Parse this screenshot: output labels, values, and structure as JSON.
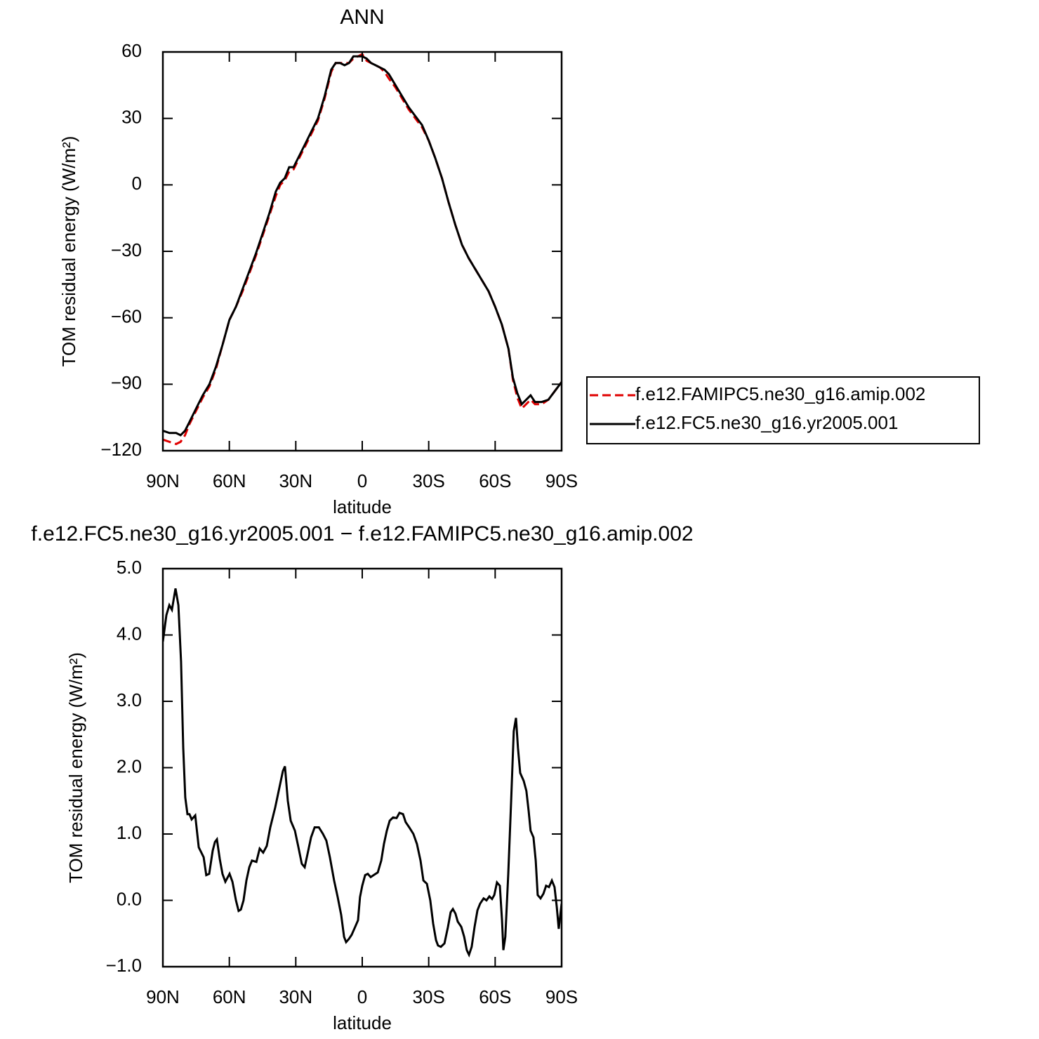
{
  "chart_data": [
    {
      "type": "line",
      "title": "ANN",
      "xlabel": "latitude",
      "ylabel": "TOM residual energy (W/m²)",
      "x": [
        90,
        87,
        84,
        82,
        80,
        78,
        75,
        72,
        69,
        66,
        63,
        60,
        57,
        54,
        51,
        48,
        45,
        42,
        39,
        37,
        35,
        33,
        31,
        29,
        26,
        23,
        20,
        17,
        14,
        12,
        10,
        8,
        6,
        4,
        2,
        0,
        -2,
        -4,
        -6,
        -8,
        -10,
        -12,
        -15,
        -18,
        -21,
        -24,
        -27,
        -30,
        -33,
        -36,
        -39,
        -42,
        -45,
        -48,
        -51,
        -54,
        -57,
        -60,
        -63,
        -66,
        -68,
        -70,
        -72,
        -74,
        -76,
        -78,
        -81,
        -84,
        -87,
        -90
      ],
      "series": [
        {
          "name": "f.e12.FAMIPC5.ne30_g16.amip.002",
          "color": "#e00000",
          "line_style": "dashed",
          "values": [
            -115,
            -116,
            -117,
            -116,
            -113,
            -108,
            -102,
            -96,
            -91,
            -83,
            -72,
            -61,
            -55,
            -48,
            -40,
            -32,
            -23,
            -14,
            -5,
            0,
            2,
            6,
            7,
            11,
            17,
            23,
            29,
            39,
            51,
            55,
            55,
            55,
            55,
            57,
            58,
            59,
            56,
            55,
            54,
            53,
            51,
            48,
            44,
            39,
            34,
            30,
            26,
            20,
            12,
            3,
            -8,
            -18,
            -27,
            -33,
            -38,
            -43,
            -48,
            -55,
            -63,
            -74,
            -88,
            -96,
            -101,
            -99,
            -97,
            -99,
            -99,
            -97,
            -93,
            -89
          ]
        },
        {
          "name": "f.e12.FC5.ne30_g16.yr2005.001",
          "color": "#000000",
          "line_style": "solid",
          "values": [
            -111,
            -112,
            -112,
            -113,
            -111,
            -107,
            -101,
            -95,
            -90,
            -82,
            -72,
            -61,
            -55,
            -47,
            -39,
            -31,
            -22,
            -13,
            -3,
            1,
            3,
            8,
            8,
            12,
            18,
            24,
            30,
            40,
            52,
            55,
            55,
            54,
            55,
            58,
            58,
            58,
            57,
            55,
            54,
            53,
            52,
            50,
            45,
            40,
            35,
            31,
            27,
            20,
            12,
            3,
            -8,
            -18,
            -27,
            -33,
            -38,
            -43,
            -48,
            -55,
            -63,
            -74,
            -87,
            -94,
            -99,
            -97,
            -95,
            -98,
            -98,
            -97,
            -93,
            -89
          ]
        }
      ],
      "xlim": [
        90,
        -90
      ],
      "xticks": [
        {
          "value": 90,
          "label": "90N"
        },
        {
          "value": 60,
          "label": "60N"
        },
        {
          "value": 30,
          "label": "30N"
        },
        0,
        {
          "value": -30,
          "label": "30S"
        },
        {
          "value": -60,
          "label": "60S"
        },
        {
          "value": -90,
          "label": "90S"
        }
      ],
      "ylim": [
        -120,
        60
      ],
      "yticks": [
        {
          "value": -120,
          "label": "−120"
        },
        {
          "value": -90,
          "label": "−90"
        },
        {
          "value": -60,
          "label": "−60"
        },
        {
          "value": -30,
          "label": "−30"
        },
        0,
        30,
        60
      ],
      "legend": "outside-right"
    },
    {
      "type": "line",
      "title": "f.e12.FC5.ne30_g16.yr2005.001 − f.e12.FAMIPC5.ne30_g16.amip.002",
      "xlabel": "latitude",
      "ylabel": "TOM residual energy (W/m²)",
      "x": [
        90,
        88.4,
        87.1,
        85.9,
        84.3,
        83.0,
        81.8,
        80.8,
        79.9,
        78.9,
        78.0,
        77.0,
        75.4,
        73.8,
        71.6,
        70.4,
        69.1,
        67.5,
        66.5,
        65.6,
        64.3,
        63.1,
        61.8,
        59.9,
        58.6,
        57.0,
        55.8,
        54.8,
        53.6,
        52.3,
        51.0,
        49.8,
        47.8,
        46.3,
        44.7,
        43.1,
        41.5,
        39.3,
        37.4,
        35.8,
        34.9,
        33.6,
        32.3,
        30.4,
        28.8,
        27.3,
        26.0,
        24.7,
        23.1,
        21.5,
        19.6,
        17.7,
        16.2,
        14.6,
        12.7,
        11.1,
        9.5,
        8.2,
        7.3,
        6.0,
        4.8,
        3.2,
        1.9,
        1.0,
        0,
        -1.3,
        -2.5,
        -3.8,
        -5.1,
        -7.0,
        -8.6,
        -9.8,
        -11.1,
        -12.4,
        -13.9,
        -15.5,
        -16.8,
        -18.4,
        -19.6,
        -21.2,
        -23.1,
        -24.7,
        -26.3,
        -27.6,
        -29.2,
        -30.7,
        -32.0,
        -33.3,
        -34.2,
        -35.5,
        -37.1,
        -38.7,
        -39.9,
        -40.9,
        -42.1,
        -43.1,
        -44.7,
        -46.0,
        -47.2,
        -48.2,
        -49.4,
        -50.7,
        -52.0,
        -53.2,
        -54.8,
        -56.1,
        -57.4,
        -58.6,
        -59.6,
        -60.8,
        -62.1,
        -63.1,
        -63.7,
        -64.6,
        -65.9,
        -67.2,
        -68.4,
        -69.4,
        -70.3,
        -71.3,
        -72.9,
        -74.1,
        -75.1,
        -76.0,
        -77.3,
        -78.3,
        -79.2,
        -80.5,
        -81.8,
        -83.0,
        -84.3,
        -85.6,
        -86.8,
        -87.8,
        -88.7,
        -90
      ],
      "color": "#000000",
      "values": [
        3.9,
        4.3,
        4.45,
        4.38,
        4.7,
        4.45,
        3.6,
        2.3,
        1.55,
        1.3,
        1.3,
        1.22,
        1.28,
        0.8,
        0.65,
        0.38,
        0.4,
        0.75,
        0.88,
        0.92,
        0.62,
        0.4,
        0.28,
        0.4,
        0.28,
        0.0,
        -0.16,
        -0.14,
        0.0,
        0.3,
        0.5,
        0.6,
        0.58,
        0.78,
        0.72,
        0.82,
        1.1,
        1.4,
        1.7,
        1.95,
        2.02,
        1.5,
        1.2,
        1.05,
        0.8,
        0.55,
        0.5,
        0.7,
        0.95,
        1.1,
        1.1,
        1.0,
        0.9,
        0.65,
        0.3,
        0.05,
        -0.22,
        -0.55,
        -0.63,
        -0.58,
        -0.52,
        -0.4,
        -0.3,
        0.05,
        0.22,
        0.38,
        0.4,
        0.35,
        0.38,
        0.42,
        0.6,
        0.85,
        1.05,
        1.2,
        1.25,
        1.24,
        1.32,
        1.3,
        1.18,
        1.1,
        1.0,
        0.85,
        0.6,
        0.3,
        0.25,
        0.0,
        -0.35,
        -0.6,
        -0.68,
        -0.7,
        -0.65,
        -0.4,
        -0.18,
        -0.13,
        -0.2,
        -0.32,
        -0.4,
        -0.55,
        -0.75,
        -0.82,
        -0.7,
        -0.4,
        -0.15,
        -0.05,
        0.03,
        0.0,
        0.06,
        0.02,
        0.08,
        0.27,
        0.22,
        -0.3,
        -0.75,
        -0.55,
        0.4,
        1.5,
        2.55,
        2.75,
        2.3,
        1.92,
        1.8,
        1.65,
        1.35,
        1.05,
        0.95,
        0.6,
        0.08,
        0.03,
        0.1,
        0.22,
        0.2,
        0.3,
        0.2,
        -0.1,
        -0.43,
        -0.05
      ],
      "xlim": [
        90,
        -90
      ],
      "xticks": [
        {
          "value": 90,
          "label": "90N"
        },
        {
          "value": 60,
          "label": "60N"
        },
        {
          "value": 30,
          "label": "30N"
        },
        0,
        {
          "value": -30,
          "label": "30S"
        },
        {
          "value": -60,
          "label": "60S"
        },
        {
          "value": -90,
          "label": "90S"
        }
      ],
      "ylim": [
        -1,
        5
      ],
      "yticks": [
        {
          "value": -1,
          "label": "−1.0"
        },
        {
          "value": 0,
          "label": "0.0"
        },
        {
          "value": 1,
          "label": "1.0"
        },
        {
          "value": 2,
          "label": "2.0"
        },
        {
          "value": 3,
          "label": "3.0"
        },
        {
          "value": 4,
          "label": "4.0"
        },
        {
          "value": 5,
          "label": "5.0"
        }
      ]
    }
  ]
}
